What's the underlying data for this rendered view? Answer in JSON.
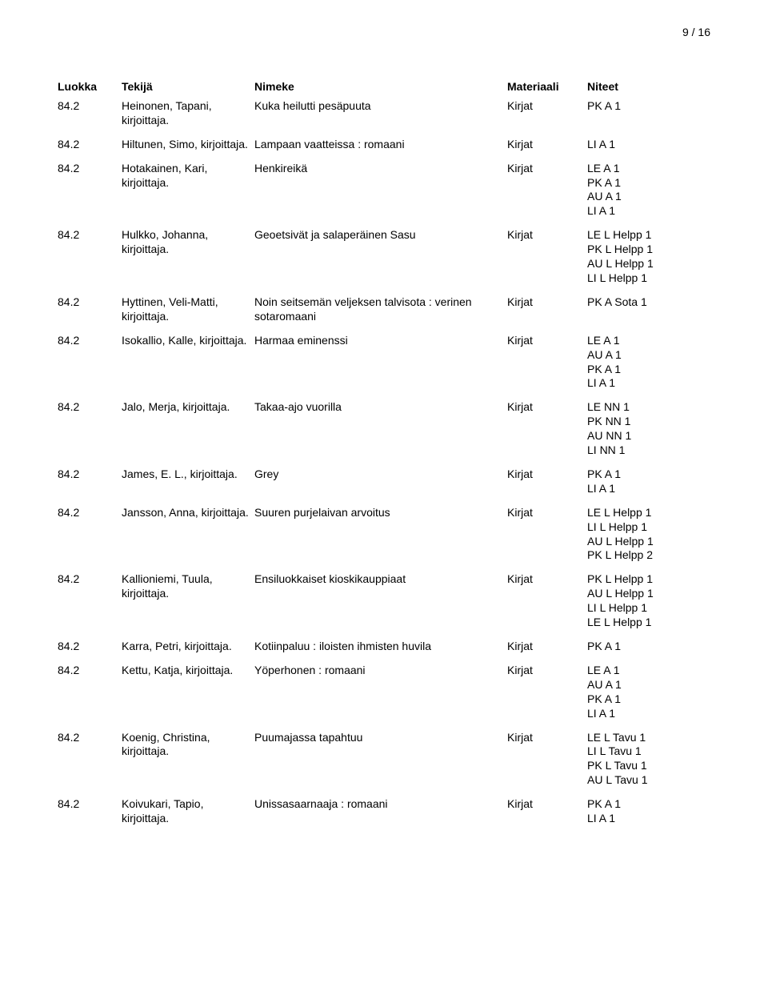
{
  "page_number": "9 / 16",
  "headers": {
    "luokka": "Luokka",
    "tekija": "Tekijä",
    "nimeke": "Nimeke",
    "materiaali": "Materiaali",
    "niteet": "Niteet"
  },
  "rows": [
    {
      "luokka": "84.2",
      "tekija": "Heinonen, Tapani, kirjoittaja.",
      "nimeke": "Kuka heilutti pesäpuuta",
      "materiaali": "Kirjat",
      "niteet": [
        "PK A 1"
      ]
    },
    {
      "luokka": "84.2",
      "tekija": "Hiltunen, Simo, kirjoittaja.",
      "nimeke": "Lampaan vaatteissa : romaani",
      "materiaali": "Kirjat",
      "niteet": [
        "LI A 1"
      ]
    },
    {
      "luokka": "84.2",
      "tekija": "Hotakainen, Kari, kirjoittaja.",
      "nimeke": "Henkireikä",
      "materiaali": "Kirjat",
      "niteet": [
        "LE A 1",
        "PK A 1",
        "AU A 1",
        "LI A 1"
      ]
    },
    {
      "luokka": "84.2",
      "tekija": "Hulkko, Johanna, kirjoittaja.",
      "nimeke": "Geoetsivät ja salaperäinen Sasu",
      "materiaali": "Kirjat",
      "niteet": [
        "LE L Helpp 1",
        "PK L Helpp 1",
        "AU L Helpp 1",
        "LI L Helpp 1"
      ]
    },
    {
      "luokka": "84.2",
      "tekija": "Hyttinen, Veli-Matti, kirjoittaja.",
      "nimeke": "Noin seitsemän veljeksen talvisota : verinen sotaromaani",
      "materiaali": "Kirjat",
      "niteet": [
        "PK A Sota 1"
      ]
    },
    {
      "luokka": "84.2",
      "tekija": "Isokallio, Kalle, kirjoittaja.",
      "nimeke": "Harmaa eminenssi",
      "materiaali": "Kirjat",
      "niteet": [
        "LE A 1",
        "AU A 1",
        "PK A 1",
        "LI A 1"
      ]
    },
    {
      "luokka": "84.2",
      "tekija": "Jalo, Merja, kirjoittaja.",
      "nimeke": "Takaa-ajo vuorilla",
      "materiaali": "Kirjat",
      "niteet": [
        "LE NN 1",
        "PK NN 1",
        "AU NN 1",
        "LI NN 1"
      ]
    },
    {
      "luokka": "84.2",
      "tekija": "James, E. L., kirjoittaja.",
      "nimeke": "Grey",
      "materiaali": "Kirjat",
      "niteet": [
        "PK A 1",
        "LI A 1"
      ]
    },
    {
      "luokka": "84.2",
      "tekija": "Jansson, Anna, kirjoittaja.",
      "nimeke": "Suuren purjelaivan arvoitus",
      "materiaali": "Kirjat",
      "niteet": [
        "LE L Helpp 1",
        "LI L Helpp 1",
        "AU L Helpp 1",
        "PK L Helpp 2"
      ]
    },
    {
      "luokka": "84.2",
      "tekija": "Kallioniemi, Tuula, kirjoittaja.",
      "nimeke": "Ensiluokkaiset kioskikauppiaat",
      "materiaali": "Kirjat",
      "niteet": [
        "PK L Helpp 1",
        "AU L Helpp 1",
        "LI L Helpp 1",
        "LE L Helpp 1"
      ]
    },
    {
      "luokka": "84.2",
      "tekija": "Karra, Petri, kirjoittaja.",
      "nimeke": "Kotiinpaluu : iloisten ihmisten huvila",
      "materiaali": "Kirjat",
      "niteet": [
        "PK A 1"
      ]
    },
    {
      "luokka": "84.2",
      "tekija": "Kettu, Katja, kirjoittaja.",
      "nimeke": "Yöperhonen : romaani",
      "materiaali": "Kirjat",
      "niteet": [
        "LE A 1",
        "AU A 1",
        "PK A 1",
        "LI A 1"
      ]
    },
    {
      "luokka": "84.2",
      "tekija": "Koenig, Christina, kirjoittaja.",
      "nimeke": "Puumajassa tapahtuu",
      "materiaali": "Kirjat",
      "niteet": [
        "LE L Tavu 1",
        "LI L Tavu 1",
        "PK L Tavu 1",
        "AU L Tavu 1"
      ]
    },
    {
      "luokka": "84.2",
      "tekija": "Koivukari, Tapio, kirjoittaja.",
      "nimeke": "Unissasaarnaaja : romaani",
      "materiaali": "Kirjat",
      "niteet": [
        "PK A 1",
        "LI A 1"
      ]
    }
  ]
}
